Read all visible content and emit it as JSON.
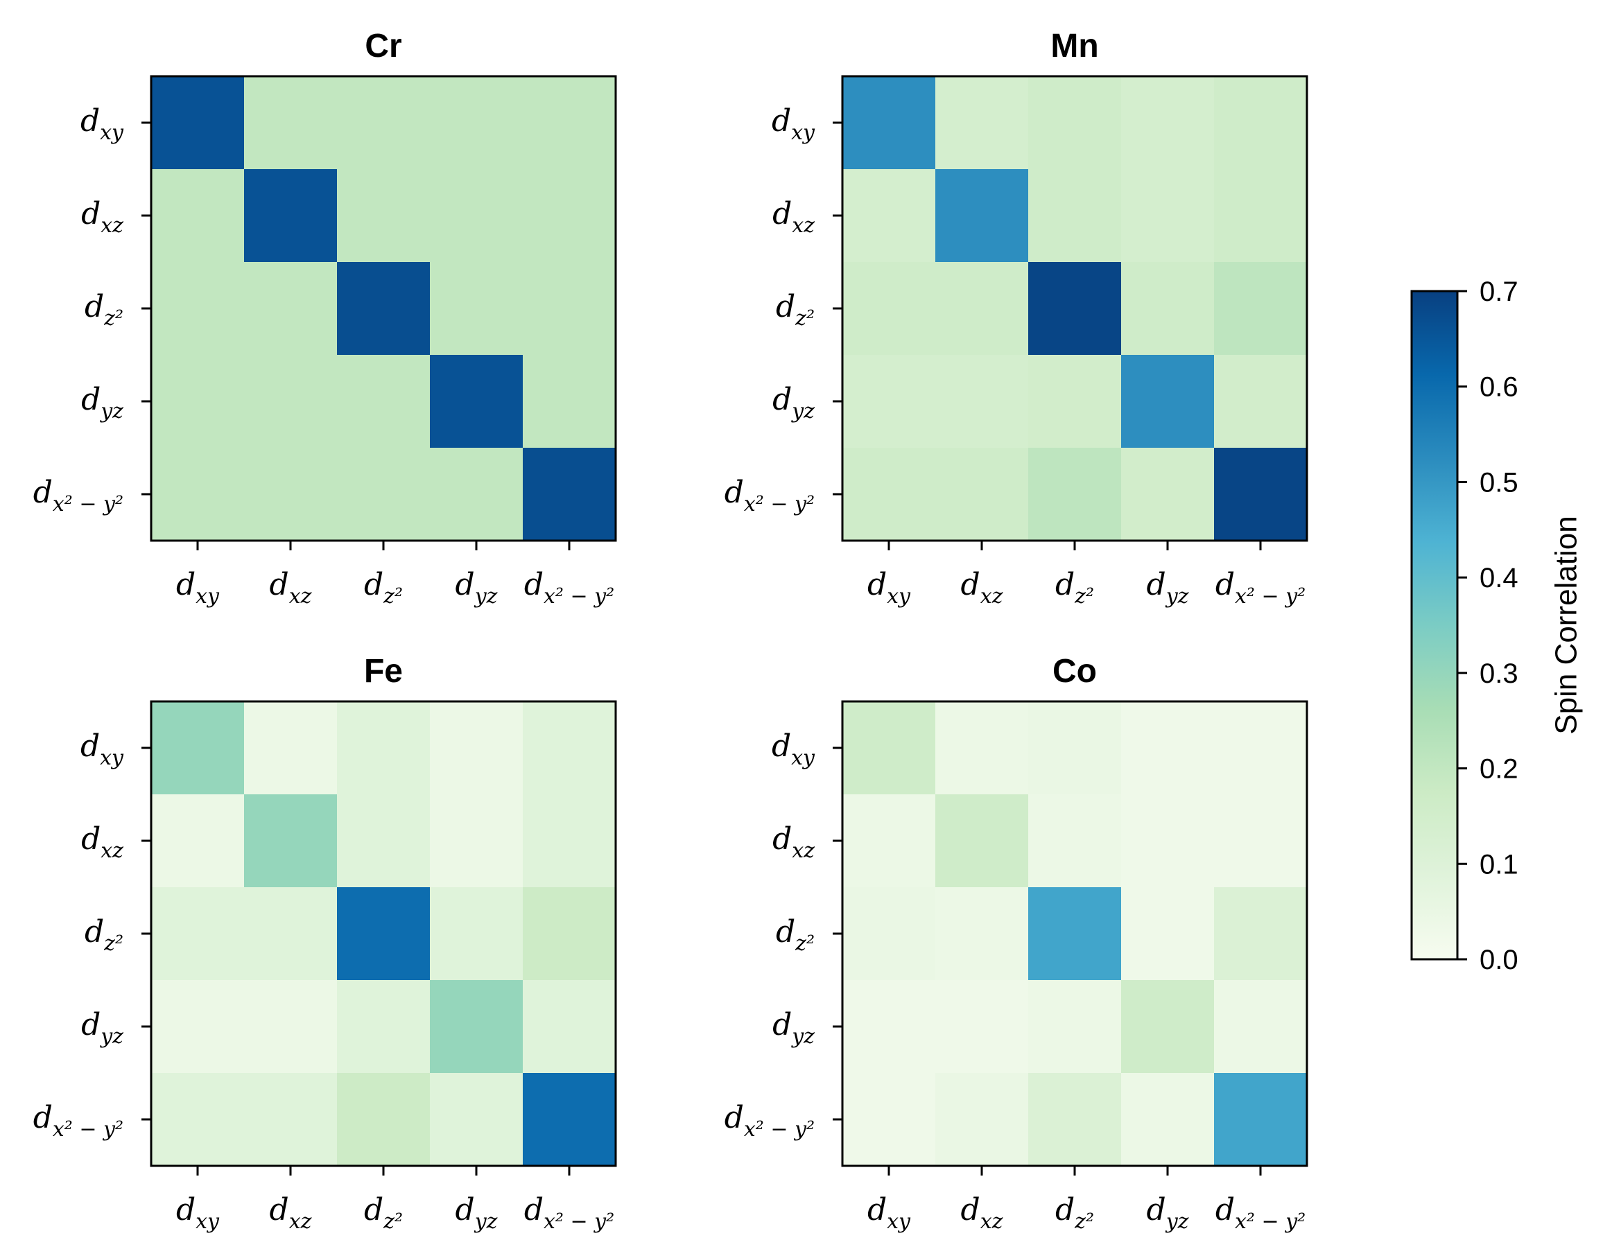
{
  "chart_data": {
    "type": "heatmap",
    "colormap": [
      "#f7fcf0",
      "#e0f3db",
      "#ccebc5",
      "#a8ddb5",
      "#7bccc4",
      "#4eb3d3",
      "#2b8cbe",
      "#0868ac",
      "#084081"
    ],
    "vmin": 0.0,
    "vmax": 0.7,
    "orbitals": [
      {
        "base": "d",
        "sub": "xy"
      },
      {
        "base": "d",
        "sub": "xz"
      },
      {
        "base": "d",
        "sub": "z²"
      },
      {
        "base": "d",
        "sub": "yz"
      },
      {
        "base": "d",
        "sub": "x² − y²"
      }
    ],
    "panels": [
      {
        "title": "Cr",
        "matrix": [
          [
            0.66,
            0.2,
            0.2,
            0.2,
            0.2
          ],
          [
            0.2,
            0.66,
            0.2,
            0.2,
            0.2
          ],
          [
            0.2,
            0.2,
            0.67,
            0.2,
            0.2
          ],
          [
            0.2,
            0.2,
            0.2,
            0.66,
            0.2
          ],
          [
            0.2,
            0.2,
            0.2,
            0.2,
            0.67
          ]
        ]
      },
      {
        "title": "Mn",
        "matrix": [
          [
            0.52,
            0.14,
            0.16,
            0.14,
            0.16
          ],
          [
            0.14,
            0.52,
            0.16,
            0.14,
            0.16
          ],
          [
            0.16,
            0.16,
            0.69,
            0.16,
            0.21
          ],
          [
            0.14,
            0.14,
            0.15,
            0.52,
            0.15
          ],
          [
            0.16,
            0.16,
            0.21,
            0.15,
            0.69
          ]
        ]
      },
      {
        "title": "Fe",
        "matrix": [
          [
            0.3,
            0.04,
            0.09,
            0.04,
            0.09
          ],
          [
            0.04,
            0.3,
            0.09,
            0.04,
            0.09
          ],
          [
            0.09,
            0.09,
            0.6,
            0.09,
            0.17
          ],
          [
            0.04,
            0.04,
            0.09,
            0.3,
            0.09
          ],
          [
            0.09,
            0.09,
            0.17,
            0.09,
            0.6
          ]
        ]
      },
      {
        "title": "Co",
        "matrix": [
          [
            0.16,
            0.04,
            0.05,
            0.03,
            0.03
          ],
          [
            0.04,
            0.16,
            0.04,
            0.03,
            0.03
          ],
          [
            0.05,
            0.04,
            0.47,
            0.03,
            0.11
          ],
          [
            0.03,
            0.03,
            0.04,
            0.16,
            0.04
          ],
          [
            0.03,
            0.05,
            0.11,
            0.04,
            0.47
          ]
        ]
      }
    ],
    "colorbar": {
      "label": "Spin Correlation",
      "ticks": [
        "0.0",
        "0.1",
        "0.2",
        "0.3",
        "0.4",
        "0.5",
        "0.6",
        "0.7"
      ],
      "range": [
        0.0,
        0.7
      ]
    }
  }
}
